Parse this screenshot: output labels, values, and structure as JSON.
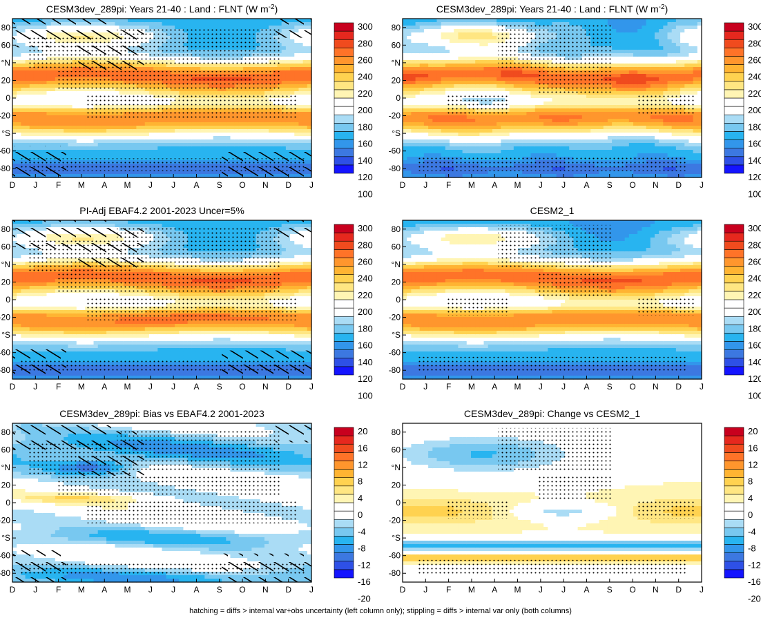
{
  "caption": "hatching = diffs > internal var+obs uncertainty (left column only); stippling = diffs > internal var only (both columns)",
  "months": [
    "D",
    "J",
    "F",
    "M",
    "A",
    "M",
    "J",
    "J",
    "A",
    "S",
    "O",
    "N",
    "D",
    "J"
  ],
  "lat_ticks": [
    "80",
    "60",
    "°N",
    "20",
    "0",
    "-20",
    "°S",
    "-60",
    "-80"
  ],
  "lat_tick_values": [
    80,
    60,
    40,
    20,
    0,
    -20,
    -40,
    -60,
    -80
  ],
  "colors": {
    "abs": [
      "#1414ff",
      "#2e50e6",
      "#3c78e1",
      "#3296eb",
      "#28b4f0",
      "#78c8f0",
      "#aadcf5",
      "#ffffff",
      "#ffffff",
      "#fff5b4",
      "#ffe682",
      "#ffd250",
      "#ffb432",
      "#ff962d",
      "#ff7328",
      "#f04b1e",
      "#e6281e",
      "#c8001e"
    ],
    "diff": [
      "#1414ff",
      "#2e50e6",
      "#3c78e1",
      "#3296eb",
      "#28b4f0",
      "#78c8f0",
      "#aadcf5",
      "#ffffff",
      "#ffffff",
      "#fff5b4",
      "#ffe682",
      "#ffd250",
      "#ffb432",
      "#ff962d",
      "#ff7328",
      "#f04b1e",
      "#e6281e",
      "#c8001e"
    ]
  },
  "colorbars": {
    "abs": {
      "labels": [
        "300",
        "280",
        "260",
        "240",
        "220",
        "200",
        "180",
        "160",
        "140",
        "120",
        "100"
      ]
    },
    "diff": {
      "labels": [
        "20",
        "16",
        "12",
        "8",
        "4",
        "0",
        "-4",
        "-8",
        "-12",
        "-16",
        "-20"
      ]
    }
  },
  "chart_data": [
    {
      "type": "heatmap",
      "title": "CESM3dev_289pi: Years 21-40 : Land : FLNT (W m",
      "title_sup": "-2",
      "title_tail": ")",
      "x": "month (D to J)",
      "y": "latitude",
      "ylim": [
        -90,
        90
      ],
      "colorbar": "abs",
      "range": [
        90,
        310
      ],
      "hatching": true,
      "stippling": true
    },
    {
      "type": "heatmap",
      "title": "CESM3dev_289pi: Years 21-40 : Land : FLNT (W m",
      "title_sup": "-2",
      "title_tail": ")",
      "x": "month (D to J)",
      "y": "latitude",
      "ylim": [
        -90,
        90
      ],
      "colorbar": "abs",
      "range": [
        90,
        310
      ],
      "hatching": false,
      "stippling": true
    },
    {
      "type": "heatmap",
      "title": "PI-Adj EBAF4.2 2001-2023 Uncer=5%",
      "title_sup": "",
      "title_tail": "",
      "x": "month (D to J)",
      "y": "latitude",
      "ylim": [
        -90,
        90
      ],
      "colorbar": "abs",
      "range": [
        90,
        310
      ],
      "hatching": true,
      "stippling": true
    },
    {
      "type": "heatmap",
      "title": "CESM2_1",
      "title_sup": "",
      "title_tail": "",
      "x": "month (D to J)",
      "y": "latitude",
      "ylim": [
        -90,
        90
      ],
      "colorbar": "abs",
      "range": [
        90,
        310
      ],
      "hatching": false,
      "stippling": true
    },
    {
      "type": "heatmap",
      "title": "CESM3dev_289pi: Bias vs EBAF4.2 2001-2023",
      "title_sup": "",
      "title_tail": "",
      "x": "month (D to J)",
      "y": "latitude",
      "ylim": [
        -90,
        90
      ],
      "colorbar": "diff",
      "range": [
        -22,
        22
      ],
      "hatching": true,
      "stippling": true
    },
    {
      "type": "heatmap",
      "title": "CESM3dev_289pi: Change vs CESM2_1",
      "title_sup": "",
      "title_tail": "",
      "x": "month (D to J)",
      "y": "latitude",
      "ylim": [
        -90,
        90
      ],
      "colorbar": "diff",
      "range": [
        -22,
        22
      ],
      "hatching": false,
      "stippling": true
    }
  ]
}
